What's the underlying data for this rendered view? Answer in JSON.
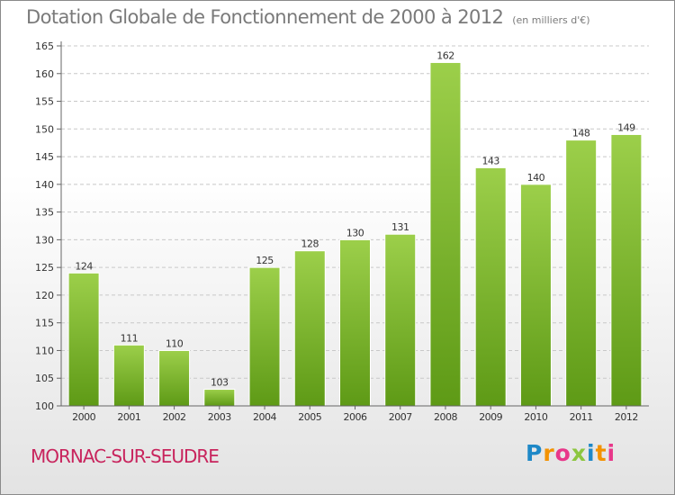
{
  "header": {
    "title": "Dotation Globale de Fonctionnement de 2000 à 2012",
    "unit": "(en milliers d'€)"
  },
  "footer": {
    "commune": "MORNAC-SUR-SEUDRE",
    "brand_letters": [
      "P",
      "r",
      "o",
      "x",
      "i",
      "t",
      "i"
    ],
    "brand_colors": [
      "#1e88c7",
      "#f39200",
      "#e8378a",
      "#8cc63f",
      "#1e88c7",
      "#f39200",
      "#e8378a"
    ]
  },
  "chart_data": {
    "type": "bar",
    "title": "Dotation Globale de Fonctionnement de 2000 à 2012",
    "subtitle": "(en milliers d'€)",
    "xlabel": "",
    "ylabel": "",
    "categories": [
      "2000",
      "2001",
      "2002",
      "2003",
      "2004",
      "2005",
      "2006",
      "2007",
      "2008",
      "2009",
      "2010",
      "2011",
      "2012"
    ],
    "values": [
      124,
      111,
      110,
      103,
      125,
      128,
      130,
      131,
      162,
      143,
      140,
      148,
      149
    ],
    "ylim": [
      100,
      165
    ],
    "yticks": [
      100,
      105,
      110,
      115,
      120,
      125,
      130,
      135,
      140,
      145,
      150,
      155,
      160,
      165
    ],
    "grid": true,
    "bar_color_top": "#9ccf4a",
    "bar_color_bottom": "#5e9a16"
  }
}
